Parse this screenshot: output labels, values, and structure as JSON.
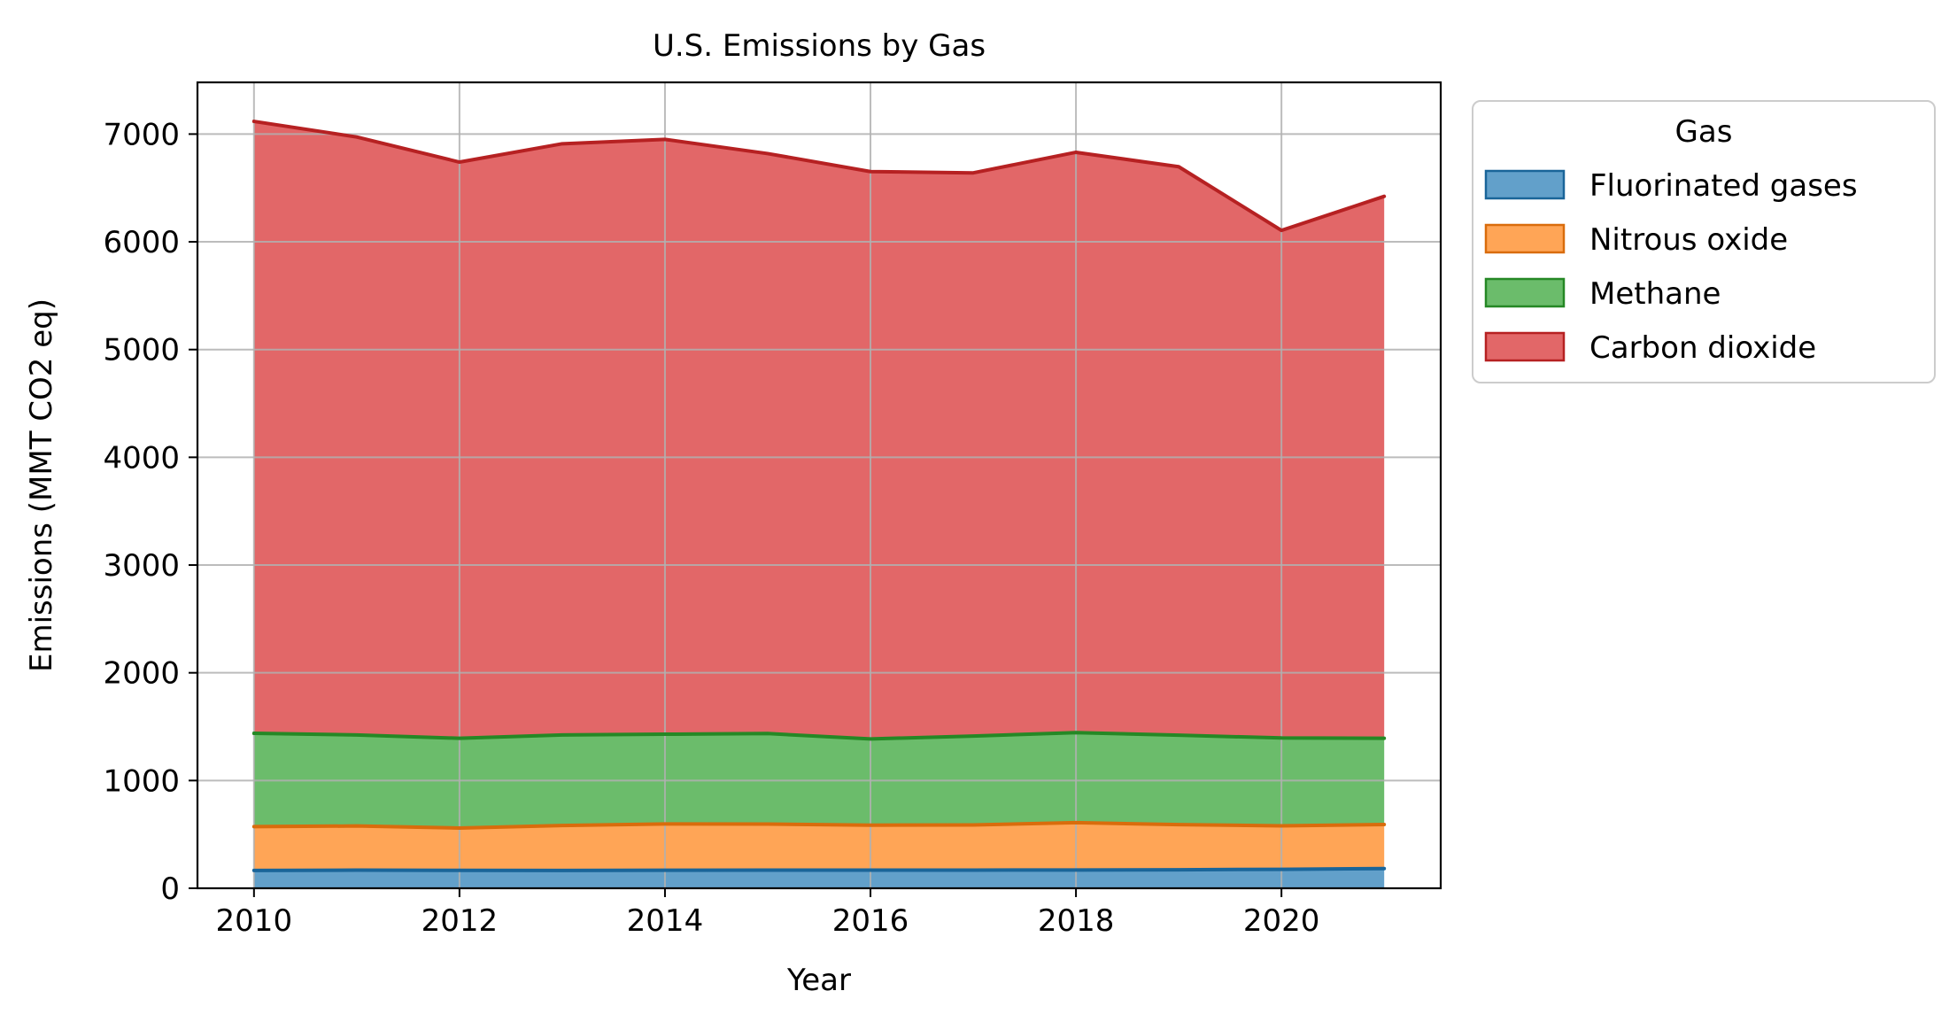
{
  "chart_data": {
    "type": "area",
    "stacked": true,
    "title": "U.S. Emissions by Gas",
    "xlabel": "Year",
    "ylabel": "Emissions (MMT CO2 eq)",
    "x": [
      2010,
      2011,
      2012,
      2013,
      2014,
      2015,
      2016,
      2017,
      2018,
      2019,
      2020,
      2021
    ],
    "xticks": [
      2010,
      2012,
      2014,
      2016,
      2018,
      2020
    ],
    "yticks": [
      0,
      1000,
      2000,
      3000,
      4000,
      5000,
      6000,
      7000
    ],
    "xlim": [
      2009.45,
      2021.55
    ],
    "ylim": [
      0,
      7480
    ],
    "grid": true,
    "legend": {
      "title": "Gas",
      "placement": "outside-top-right"
    },
    "series": [
      {
        "name": "Fluorinated gases",
        "color": "#1f77b4",
        "values": [
          165,
          168,
          166,
          165,
          167,
          168,
          168,
          169,
          170,
          172,
          176,
          183
        ]
      },
      {
        "name": "Nitrous oxide",
        "color": "#ff7f0e",
        "values": [
          407,
          410,
          393,
          418,
          430,
          428,
          418,
          419,
          439,
          419,
          404,
          409
        ]
      },
      {
        "name": "Methane",
        "color": "#2ca02c",
        "values": [
          866,
          845,
          833,
          840,
          833,
          840,
          800,
          825,
          836,
          830,
          815,
          800
        ]
      },
      {
        "name": "Carbon dioxide",
        "color": "#d62728",
        "values": [
          5680,
          5550,
          5348,
          5487,
          5521,
          5383,
          5266,
          5227,
          5386,
          5276,
          4711,
          5030
        ]
      }
    ]
  }
}
